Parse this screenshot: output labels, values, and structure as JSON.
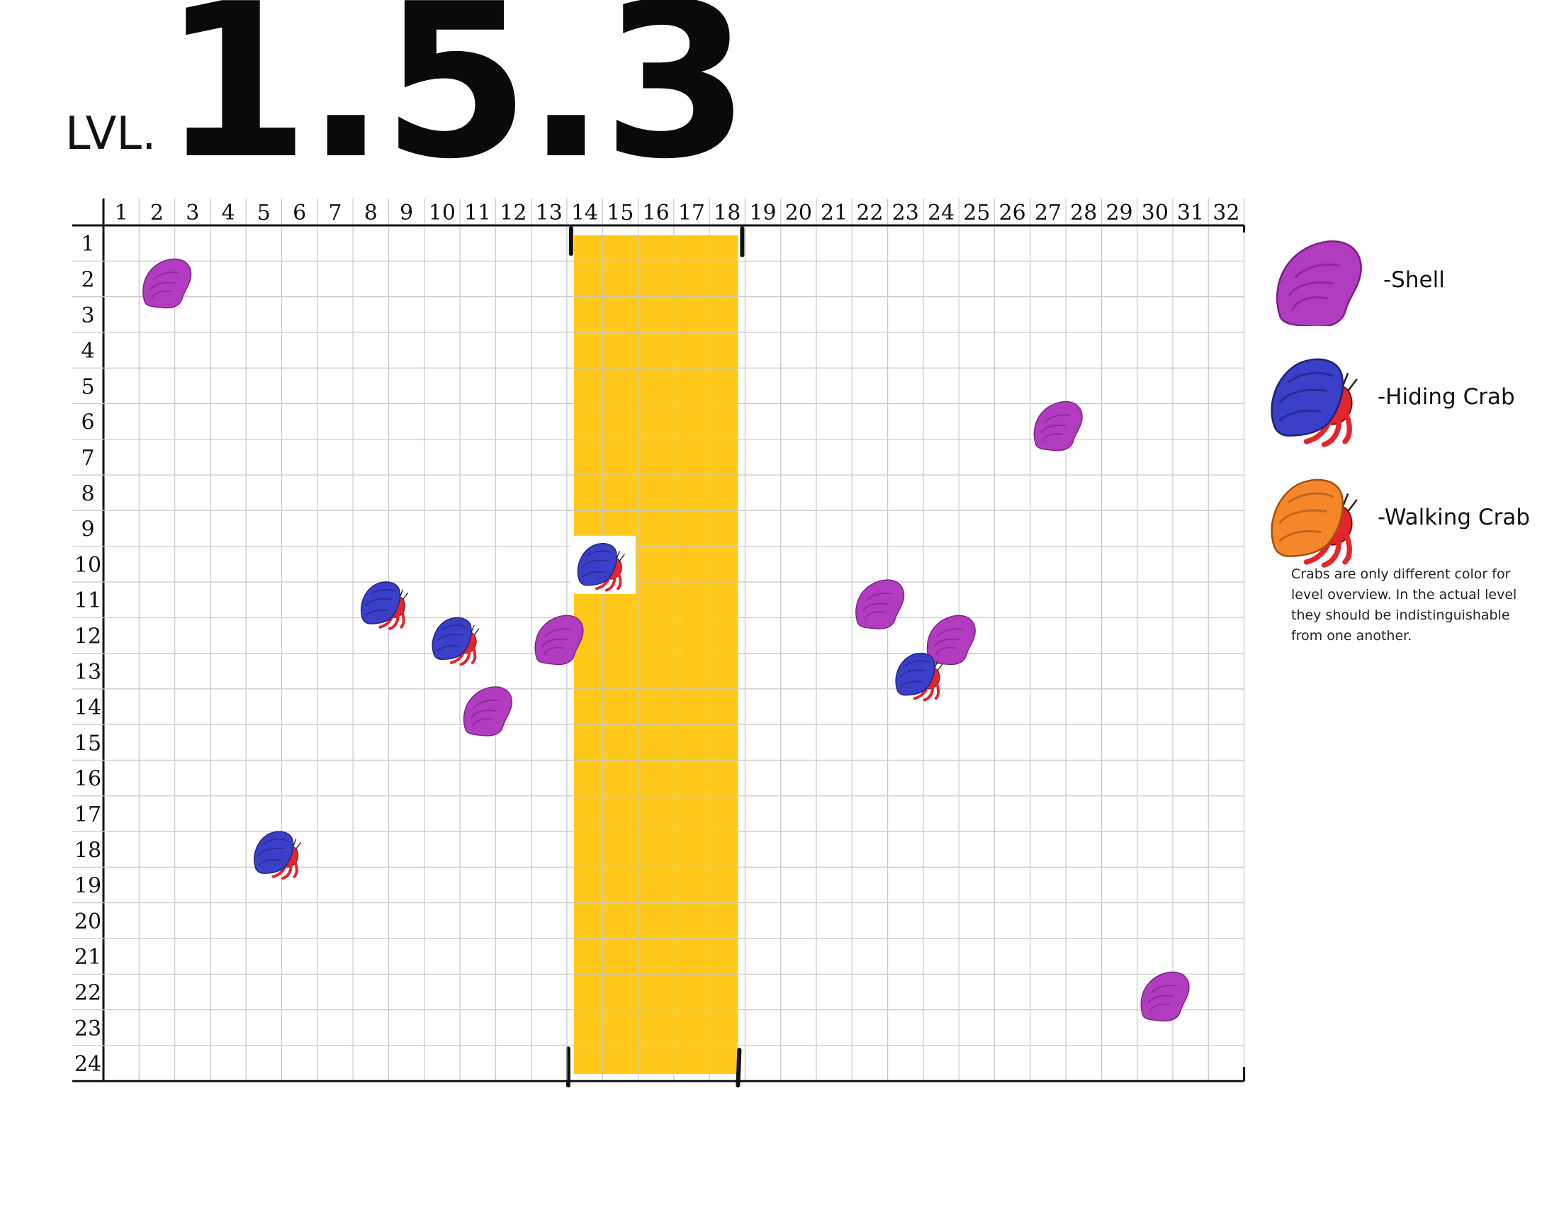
{
  "level": {
    "prefix": "LVL.",
    "number": "1.5.3"
  },
  "grid": {
    "columns": [
      "1",
      "2",
      "3",
      "4",
      "5",
      "6",
      "7",
      "8",
      "9",
      "10",
      "11",
      "12",
      "13",
      "14",
      "15",
      "16",
      "17",
      "18",
      "19",
      "20",
      "21",
      "22",
      "23",
      "24",
      "25",
      "26",
      "27",
      "28",
      "29",
      "30",
      "31",
      "32"
    ],
    "rows": [
      "1",
      "2",
      "3",
      "4",
      "5",
      "6",
      "7",
      "8",
      "9",
      "10",
      "11",
      "12",
      "13",
      "14",
      "15",
      "16",
      "17",
      "18",
      "19",
      "20",
      "21",
      "22",
      "23",
      "24"
    ]
  },
  "zone": {
    "col_start": 14,
    "col_end": 18,
    "color": "#FFC81A"
  },
  "entities": [
    {
      "type": "shell",
      "col": 2,
      "row": 2
    },
    {
      "type": "shell",
      "col": 27,
      "row": 6
    },
    {
      "type": "hiding_crab",
      "col": 8,
      "row": 11
    },
    {
      "type": "hiding_crab",
      "col": 10,
      "row": 12
    },
    {
      "type": "shell",
      "col": 13,
      "row": 12
    },
    {
      "type": "shell",
      "col": 11,
      "row": 14
    },
    {
      "type": "hiding_crab",
      "col": 14,
      "row": 10
    },
    {
      "type": "shell",
      "col": 22,
      "row": 11
    },
    {
      "type": "shell",
      "col": 24,
      "row": 12
    },
    {
      "type": "hiding_crab",
      "col": 23,
      "row": 13
    },
    {
      "type": "hiding_crab",
      "col": 5,
      "row": 18
    },
    {
      "type": "shell",
      "col": 30,
      "row": 22
    }
  ],
  "legend": {
    "items": [
      {
        "label": "-Shell"
      },
      {
        "label": "-Hiding Crab"
      },
      {
        "label": "-Walking Crab"
      }
    ],
    "note": "Crabs are only different color for level overview. In the actual level they should be indistinguishable from one another."
  },
  "colors": {
    "shell": "#B13CC0",
    "hiding_shell": "#3A3FC8",
    "walking_shell": "#F5862A",
    "crab_body": "#E3262B",
    "grid_line": "#C8C8C8",
    "grid_border": "#111111"
  }
}
